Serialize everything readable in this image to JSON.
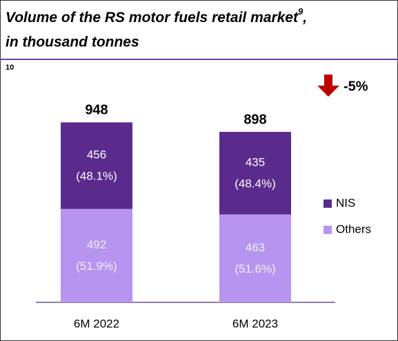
{
  "chart_data": {
    "type": "stacked_bar",
    "title": {
      "line1": "Volume of the RS motor fuels retail market",
      "footnote": "9",
      "punct": ",",
      "line2": "in thousand tonnes"
    },
    "note": "10",
    "categories": [
      "6M 2022",
      "6M 2023"
    ],
    "series": [
      {
        "name": "Others",
        "color": "#b794f0",
        "values": [
          492,
          463
        ],
        "share_labels": [
          "(51.9%)",
          "(51.6%)"
        ]
      },
      {
        "name": "NIS",
        "color": "#5a2b8c",
        "values": [
          456,
          435
        ],
        "share_labels": [
          "(48.1%)",
          "(48.4%)"
        ]
      }
    ],
    "totals": [
      948,
      898
    ],
    "change_label": "-5%",
    "ylim": [
      0,
      1000
    ]
  }
}
